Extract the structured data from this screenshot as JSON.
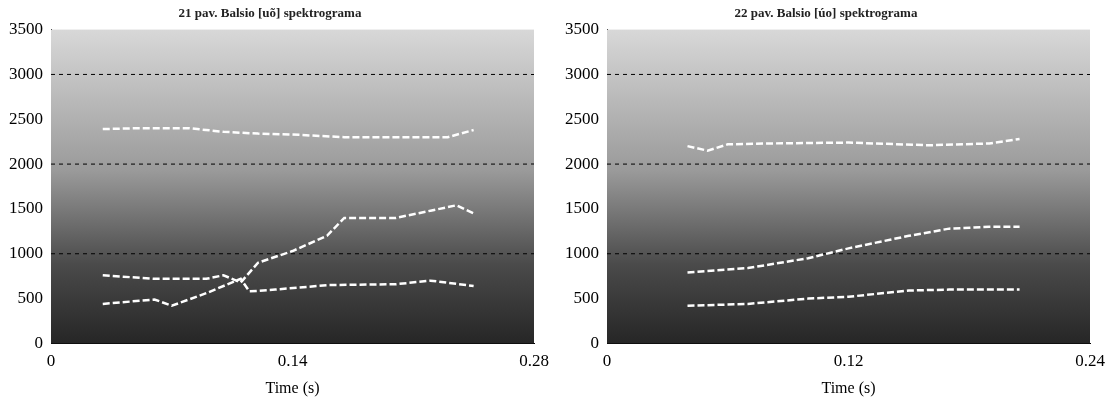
{
  "chart_data": [
    {
      "type": "line",
      "title": "21 pav. Balsio [uõ] spektrograma",
      "x_label": "Time (s)",
      "xlim": [
        0,
        0.28
      ],
      "xticks": [
        0,
        0.14,
        0.28
      ],
      "ylim": [
        0,
        3500
      ],
      "yticks": [
        0,
        500,
        1000,
        1500,
        2000,
        2500,
        3000,
        3500
      ],
      "grid": false,
      "hlines": [
        1000,
        2000,
        3000
      ],
      "series": [
        {
          "color": "#ffffff",
          "line_style": "dashed",
          "x": [
            0.03,
            0.05,
            0.08,
            0.1,
            0.12,
            0.14,
            0.17,
            0.2,
            0.23,
            0.245
          ],
          "values": [
            2390,
            2400,
            2400,
            2360,
            2340,
            2330,
            2300,
            2300,
            2300,
            2380
          ]
        },
        {
          "color": "#ffffff",
          "line_style": "dashed",
          "x": [
            0.03,
            0.06,
            0.09,
            0.1,
            0.11,
            0.12,
            0.14,
            0.16,
            0.17,
            0.2,
            0.22,
            0.235,
            0.245
          ],
          "values": [
            760,
            720,
            720,
            760,
            680,
            900,
            1030,
            1200,
            1400,
            1400,
            1480,
            1540,
            1450
          ]
        },
        {
          "color": "#ffffff",
          "line_style": "dashed",
          "x": [
            0.03,
            0.06,
            0.07,
            0.09,
            0.11,
            0.115,
            0.13,
            0.16,
            0.2,
            0.22,
            0.245
          ],
          "values": [
            440,
            490,
            420,
            560,
            720,
            580,
            600,
            650,
            660,
            700,
            640
          ]
        }
      ]
    },
    {
      "type": "line",
      "title": "22 pav. Balsio [úo] spektrograma",
      "x_label": "Time (s)",
      "xlim": [
        0,
        0.24
      ],
      "xticks": [
        0,
        0.12,
        0.24
      ],
      "ylim": [
        0,
        3500
      ],
      "yticks": [
        0,
        500,
        1000,
        1500,
        2000,
        2500,
        3000,
        3500
      ],
      "grid": false,
      "hlines": [
        1000,
        2000,
        3000
      ],
      "series": [
        {
          "color": "#ffffff",
          "line_style": "dashed",
          "x": [
            0.04,
            0.05,
            0.06,
            0.08,
            0.12,
            0.16,
            0.19,
            0.205
          ],
          "values": [
            2200,
            2150,
            2220,
            2230,
            2240,
            2210,
            2230,
            2280
          ]
        },
        {
          "color": "#ffffff",
          "line_style": "dashed",
          "x": [
            0.04,
            0.07,
            0.1,
            0.12,
            0.15,
            0.17,
            0.19,
            0.205
          ],
          "values": [
            790,
            840,
            950,
            1060,
            1200,
            1280,
            1300,
            1300
          ]
        },
        {
          "color": "#ffffff",
          "line_style": "dashed",
          "x": [
            0.04,
            0.07,
            0.1,
            0.12,
            0.15,
            0.17,
            0.205
          ],
          "values": [
            420,
            440,
            500,
            520,
            590,
            600,
            600
          ]
        }
      ]
    }
  ]
}
